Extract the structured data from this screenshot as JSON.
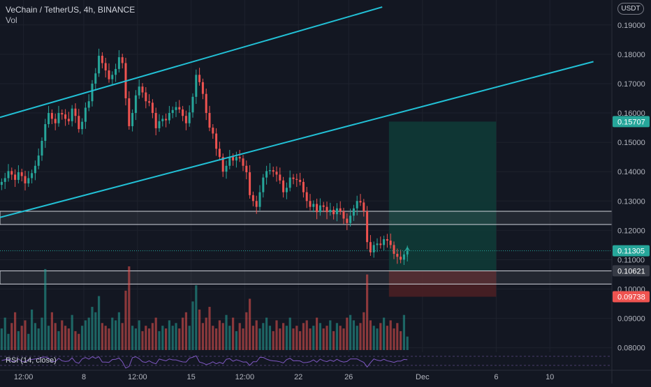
{
  "header": {
    "title": "VeChain / TetherUS, 4h, BINANCE",
    "volume_label": "Vol",
    "currency_button": "USDT"
  },
  "rsi": {
    "label": "RSI (14, close)"
  },
  "colors": {
    "background": "#131722",
    "up": "#26a69a",
    "down": "#ef5350",
    "channel": "#22c1d6",
    "zone_border": "#d1d4dc",
    "profit_zone": "#0f3a36",
    "loss_zone": "#4a1f24",
    "rsi_line": "#7e57c2"
  },
  "chart_data": {
    "type": "candlestick",
    "title": "VeChain / TetherUS, 4h, BINANCE",
    "y_axis": {
      "ticks": [
        "0.19000",
        "0.18000",
        "0.17000",
        "0.16000",
        "0.15000",
        "0.14000",
        "0.13000",
        "0.12000",
        "0.11000",
        "0.10000",
        "0.09000",
        "0.08000"
      ],
      "tick_values": [
        0.19,
        0.18,
        0.17,
        0.16,
        0.15,
        0.14,
        0.13,
        0.12,
        0.11,
        0.1,
        0.09,
        0.08
      ],
      "ylim": [
        0.0785,
        0.1985
      ]
    },
    "x_axis": {
      "ticks": [
        "12:00",
        "8",
        "12:00",
        "15",
        "12:00",
        "22",
        "26",
        "Dec",
        "6",
        "10"
      ],
      "tick_positions": [
        7,
        25,
        41,
        57,
        73,
        89,
        104,
        126,
        148,
        164
      ]
    },
    "price_labels": [
      {
        "text": "0.15707",
        "value": 0.15707,
        "kind": "target"
      },
      {
        "text": "0.11305",
        "value": 0.11305,
        "kind": "last"
      },
      {
        "text": "0.10621",
        "value": 0.10621,
        "kind": "zone"
      },
      {
        "text": "0.09738",
        "value": 0.09738,
        "kind": "stop"
      }
    ],
    "channel_lines": [
      {
        "from": [
          0,
          0.1585
        ],
        "to": [
          114,
          0.1961
        ]
      },
      {
        "from": [
          0,
          0.1244
        ],
        "to": [
          177,
          0.1775
        ]
      }
    ],
    "zones": [
      {
        "low": 0.122,
        "high": 0.1265
      },
      {
        "low": 0.1017,
        "high": 0.1062
      }
    ],
    "long_position": {
      "start": 116,
      "end": 148,
      "entry": 0.1062,
      "target": 0.15707,
      "stop": 0.09738
    },
    "close_series": [
      0.1365,
      0.1378,
      0.1402,
      0.139,
      0.1372,
      0.1398,
      0.1385,
      0.136,
      0.1378,
      0.1395,
      0.142,
      0.1455,
      0.1505,
      0.1562,
      0.16,
      0.158,
      0.1565,
      0.16,
      0.1595,
      0.158,
      0.1572,
      0.1615,
      0.159,
      0.1545,
      0.157,
      0.1618,
      0.164,
      0.17,
      0.1735,
      0.1795,
      0.177,
      0.1745,
      0.1715,
      0.173,
      0.175,
      0.179,
      0.177,
      0.165,
      0.1555,
      0.16,
      0.166,
      0.169,
      0.167,
      0.164,
      0.1635,
      0.16,
      0.1548,
      0.1572,
      0.158,
      0.1575,
      0.16,
      0.161,
      0.162,
      0.1612,
      0.159,
      0.1565,
      0.1602,
      0.1655,
      0.173,
      0.1705,
      0.1665,
      0.16,
      0.155,
      0.153,
      0.1478,
      0.145,
      0.14,
      0.142,
      0.145,
      0.1438,
      0.145,
      0.1445,
      0.142,
      0.1398,
      0.132,
      0.13,
      0.128,
      0.133,
      0.138,
      0.1402,
      0.1405,
      0.14,
      0.139,
      0.137,
      0.133,
      0.1345,
      0.138,
      0.1375,
      0.1372,
      0.1365,
      0.133,
      0.13,
      0.128,
      0.129,
      0.1262,
      0.1285,
      0.128,
      0.1262,
      0.127,
      0.1255,
      0.1275,
      0.1265,
      0.124,
      0.1225,
      0.125,
      0.1275,
      0.13,
      0.1295,
      0.1265,
      0.116,
      0.1125,
      0.115,
      0.1155,
      0.115,
      0.117,
      0.1165,
      0.115,
      0.112,
      0.111,
      0.11,
      0.1118,
      0.113
    ],
    "volume_series": [
      8,
      12,
      6,
      10,
      14,
      7,
      9,
      11,
      6,
      15,
      10,
      8,
      12,
      30,
      9,
      14,
      10,
      7,
      11,
      9,
      8,
      13,
      7,
      6,
      9,
      11,
      12,
      16,
      14,
      20,
      10,
      9,
      8,
      12,
      11,
      14,
      10,
      22,
      31,
      9,
      8,
      11,
      7,
      9,
      8,
      10,
      12,
      7,
      9,
      8,
      11,
      9,
      10,
      8,
      12,
      14,
      9,
      18,
      24,
      15,
      10,
      12,
      16,
      9,
      8,
      11,
      10,
      13,
      9,
      12,
      7,
      10,
      8,
      14,
      19,
      9,
      11,
      8,
      10,
      12,
      9,
      7,
      11,
      8,
      10,
      9,
      12,
      8,
      9,
      7,
      10,
      11,
      8,
      9,
      12,
      10,
      8,
      9,
      11,
      7,
      10,
      9,
      8,
      12,
      13,
      11,
      9,
      10,
      14,
      28,
      11,
      9,
      8,
      10,
      12,
      9,
      11,
      8,
      10,
      7,
      13,
      5
    ]
  }
}
